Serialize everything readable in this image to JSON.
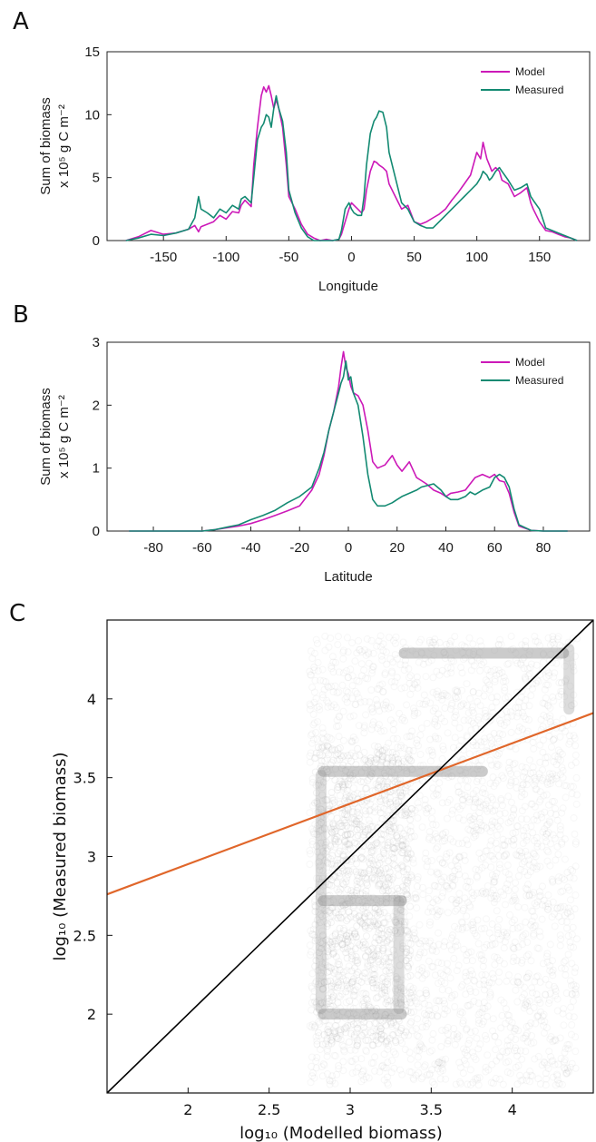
{
  "colors": {
    "model": "#cc19b8",
    "measured": "#138a72",
    "fit": "#e0662a",
    "identity": "#000000",
    "points": "#8c8c8c"
  },
  "chart_data": [
    {
      "panel": "A",
      "type": "line",
      "xlabel": "Longitude",
      "ylabel_line1": "Sum of biomass",
      "ylabel_line2": "x 10⁵ g C m⁻²",
      "xlim": [
        -195,
        190
      ],
      "ylim": [
        0,
        15
      ],
      "xticks": [
        -150,
        -100,
        -50,
        0,
        50,
        100,
        150
      ],
      "yticks": [
        0,
        5,
        10,
        15
      ],
      "legend": [
        "Model",
        "Measured"
      ],
      "series": [
        {
          "name": "Model",
          "x": [
            -180,
            -170,
            -160,
            -150,
            -140,
            -130,
            -125,
            -122,
            -120,
            -115,
            -110,
            -105,
            -100,
            -95,
            -90,
            -88,
            -85,
            -80,
            -78,
            -75,
            -72,
            -70,
            -68,
            -66,
            -64,
            -62,
            -60,
            -58,
            -55,
            -52,
            -50,
            -45,
            -40,
            -35,
            -30,
            -25,
            -20,
            -15,
            -10,
            -8,
            -5,
            -2,
            0,
            2,
            5,
            8,
            10,
            12,
            15,
            18,
            20,
            22,
            25,
            28,
            30,
            35,
            40,
            45,
            50,
            55,
            60,
            65,
            70,
            75,
            80,
            85,
            90,
            95,
            100,
            103,
            105,
            108,
            110,
            112,
            115,
            118,
            120,
            125,
            130,
            135,
            140,
            143,
            145,
            150,
            155,
            160,
            165,
            170,
            175,
            180
          ],
          "y": [
            0,
            0.3,
            0.8,
            0.5,
            0.6,
            0.9,
            1.2,
            0.7,
            1.1,
            1.3,
            1.5,
            2.0,
            1.7,
            2.3,
            2.2,
            2.8,
            3.2,
            2.7,
            6,
            9,
            11.5,
            12.2,
            11.8,
            12.3,
            11.5,
            10.5,
            11.2,
            10.5,
            9,
            6,
            3.5,
            2.5,
            1.3,
            0.5,
            0.2,
            0,
            0.1,
            0,
            0.1,
            0.5,
            1.5,
            2.5,
            3,
            2.8,
            2.5,
            2.2,
            2.5,
            4,
            5.5,
            6.3,
            6.2,
            6.0,
            5.8,
            5.5,
            4.5,
            3.5,
            2.5,
            2.8,
            1.5,
            1.3,
            1.5,
            1.8,
            2.1,
            2.5,
            3.2,
            3.8,
            4.5,
            5.2,
            7,
            6.5,
            7.8,
            6.5,
            6,
            5.5,
            5.8,
            5.5,
            4.8,
            4.5,
            3.5,
            3.8,
            4.2,
            3,
            2.5,
            1.5,
            0.8,
            0.7,
            0.5,
            0.3,
            0.2,
            0
          ]
        },
        {
          "name": "Measured",
          "x": [
            -180,
            -170,
            -160,
            -150,
            -140,
            -130,
            -125,
            -122,
            -120,
            -115,
            -110,
            -105,
            -100,
            -95,
            -90,
            -88,
            -85,
            -80,
            -78,
            -75,
            -72,
            -70,
            -68,
            -66,
            -64,
            -62,
            -60,
            -58,
            -55,
            -52,
            -50,
            -45,
            -40,
            -35,
            -30,
            -25,
            -20,
            -15,
            -10,
            -8,
            -5,
            -2,
            0,
            2,
            5,
            8,
            10,
            12,
            15,
            18,
            20,
            22,
            25,
            28,
            30,
            35,
            40,
            45,
            50,
            55,
            60,
            65,
            70,
            75,
            80,
            85,
            90,
            95,
            100,
            103,
            105,
            108,
            110,
            112,
            115,
            118,
            120,
            125,
            130,
            135,
            140,
            143,
            145,
            150,
            155,
            160,
            165,
            170,
            175,
            180
          ],
          "y": [
            0,
            0.2,
            0.5,
            0.4,
            0.6,
            0.9,
            1.8,
            3.5,
            2.5,
            2.2,
            1.8,
            2.5,
            2.2,
            2.8,
            2.5,
            3.3,
            3.5,
            3,
            5,
            8,
            9,
            9.3,
            10,
            9.8,
            9,
            10.5,
            11.5,
            10.5,
            9.5,
            7,
            4,
            2.2,
            1,
            0.3,
            0,
            0,
            0,
            0,
            0.1,
            0.8,
            2.5,
            3,
            2.5,
            2.2,
            2,
            2,
            3.5,
            6,
            8.5,
            9.5,
            9.8,
            10.3,
            10.2,
            9,
            7,
            5,
            3,
            2.5,
            1.5,
            1.2,
            1,
            1,
            1.5,
            2,
            2.5,
            3,
            3.5,
            4,
            4.5,
            5,
            5.5,
            5.2,
            4.8,
            5,
            5.5,
            5.8,
            5.5,
            4.8,
            4,
            4.2,
            4.5,
            3.5,
            3.2,
            2.5,
            1,
            0.8,
            0.6,
            0.4,
            0.2,
            0
          ]
        }
      ]
    },
    {
      "panel": "B",
      "type": "line",
      "xlabel": "Latitude",
      "ylabel_line1": "Sum of biomass",
      "ylabel_line2": "x 10⁵ g C m⁻²",
      "xlim": [
        -99,
        99
      ],
      "ylim": [
        0,
        3
      ],
      "xticks": [
        -80,
        -60,
        -40,
        -20,
        0,
        20,
        40,
        60,
        80
      ],
      "yticks": [
        0,
        1,
        2,
        3
      ],
      "legend": [
        "Model",
        "Measured"
      ],
      "series": [
        {
          "name": "Model",
          "x": [
            -90,
            -70,
            -60,
            -55,
            -50,
            -45,
            -40,
            -35,
            -30,
            -25,
            -20,
            -15,
            -12,
            -10,
            -8,
            -6,
            -4,
            -3,
            -2,
            -1,
            0,
            1,
            2,
            4,
            6,
            8,
            10,
            12,
            15,
            18,
            20,
            22,
            25,
            28,
            30,
            32,
            35,
            38,
            40,
            42,
            45,
            48,
            50,
            52,
            55,
            58,
            60,
            62,
            64,
            66,
            68,
            70,
            75,
            80,
            90
          ],
          "y": [
            0,
            0,
            0,
            0.02,
            0.05,
            0.08,
            0.12,
            0.18,
            0.25,
            0.32,
            0.4,
            0.65,
            0.9,
            1.2,
            1.6,
            1.9,
            2.3,
            2.6,
            2.85,
            2.6,
            2.5,
            2.3,
            2.2,
            2.15,
            2.0,
            1.6,
            1.1,
            1.0,
            1.05,
            1.2,
            1.05,
            0.95,
            1.1,
            0.85,
            0.8,
            0.75,
            0.65,
            0.6,
            0.55,
            0.6,
            0.62,
            0.65,
            0.75,
            0.85,
            0.9,
            0.85,
            0.9,
            0.8,
            0.78,
            0.6,
            0.3,
            0.08,
            0.01,
            0,
            0
          ]
        },
        {
          "name": "Measured",
          "x": [
            -90,
            -70,
            -60,
            -55,
            -50,
            -45,
            -40,
            -35,
            -30,
            -25,
            -20,
            -15,
            -12,
            -10,
            -8,
            -6,
            -4,
            -3,
            -2,
            -1,
            0,
            1,
            2,
            4,
            6,
            8,
            10,
            12,
            15,
            18,
            20,
            22,
            25,
            28,
            30,
            32,
            35,
            38,
            40,
            42,
            45,
            48,
            50,
            52,
            55,
            58,
            60,
            62,
            64,
            66,
            68,
            70,
            75,
            80,
            90
          ],
          "y": [
            0,
            0,
            0,
            0.02,
            0.06,
            0.1,
            0.18,
            0.25,
            0.33,
            0.45,
            0.55,
            0.7,
            1.0,
            1.25,
            1.6,
            1.9,
            2.2,
            2.35,
            2.45,
            2.7,
            2.4,
            2.45,
            2.2,
            2.0,
            1.5,
            0.9,
            0.5,
            0.4,
            0.4,
            0.45,
            0.5,
            0.55,
            0.6,
            0.65,
            0.7,
            0.72,
            0.75,
            0.65,
            0.55,
            0.5,
            0.5,
            0.55,
            0.62,
            0.58,
            0.65,
            0.7,
            0.85,
            0.9,
            0.85,
            0.7,
            0.35,
            0.1,
            0.01,
            0,
            0
          ]
        }
      ]
    },
    {
      "panel": "C",
      "type": "scatter",
      "xlabel": "log₁₀ (Modelled biomass)",
      "ylabel": "log₁₀ (Measured biomass)",
      "xlim": [
        1.5,
        4.5
      ],
      "ylim": [
        1.5,
        4.5
      ],
      "xticks": [
        2,
        2.5,
        3,
        3.5,
        4
      ],
      "yticks": [
        2,
        2.5,
        3,
        3.5,
        4
      ],
      "fit_line": {
        "x": [
          1.5,
          4.5
        ],
        "y": [
          2.76,
          3.91
        ]
      },
      "identity_line": {
        "x": [
          1.5,
          4.5
        ],
        "y": [
          1.5,
          4.5
        ]
      },
      "dense_bands": [
        {
          "x_range": [
            2.8,
            3.35
          ],
          "y": 2.0
        },
        {
          "x_range": [
            2.8,
            3.85
          ],
          "y": 3.54
        },
        {
          "x_range": [
            2.8,
            3.35
          ],
          "y": 2.72
        },
        {
          "x_range": [
            3.3,
            4.35
          ],
          "y": 4.29
        }
      ]
    }
  ]
}
